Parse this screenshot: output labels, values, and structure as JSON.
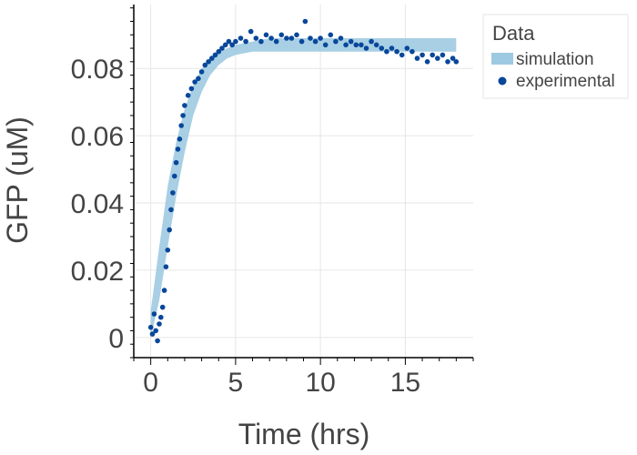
{
  "chart_data": {
    "type": "scatter",
    "xlabel": "Time (hrs)",
    "ylabel": "GFP (uM)",
    "xlim": [
      -1,
      19
    ],
    "ylim": [
      -0.006,
      0.099
    ],
    "x_ticks": [
      0,
      5,
      10,
      15
    ],
    "y_ticks": [
      0,
      0.02,
      0.04,
      0.06,
      0.08
    ],
    "x_tick_labels": [
      "0",
      "5",
      "10",
      "15"
    ],
    "y_tick_labels": [
      "0",
      "0.02",
      "0.04",
      "0.06",
      "0.08"
    ],
    "grid": true,
    "legend": {
      "title": "Data",
      "placement": "right",
      "entries": [
        "simulation",
        "experimental"
      ]
    },
    "colors": {
      "simulation_band": "#9ecae1",
      "experimental_points": "#08479a",
      "grid": "#e6e6e6",
      "axis": "#000000"
    },
    "series": [
      {
        "name": "simulation",
        "kind": "band",
        "x": [
          0,
          0.5,
          1,
          1.5,
          2,
          2.5,
          3,
          3.5,
          4,
          4.5,
          5,
          6,
          7,
          8,
          9,
          10,
          11,
          12,
          13,
          14,
          15,
          16,
          17,
          18
        ],
        "lower": [
          0,
          0.011,
          0.027,
          0.042,
          0.055,
          0.066,
          0.073,
          0.078,
          0.081,
          0.083,
          0.084,
          0.085,
          0.085,
          0.085,
          0.085,
          0.085,
          0.085,
          0.085,
          0.085,
          0.085,
          0.085,
          0.085,
          0.085,
          0.085
        ],
        "upper": [
          0.008,
          0.027,
          0.045,
          0.058,
          0.068,
          0.075,
          0.08,
          0.083,
          0.085,
          0.086,
          0.087,
          0.088,
          0.089,
          0.089,
          0.089,
          0.089,
          0.089,
          0.089,
          0.089,
          0.089,
          0.089,
          0.089,
          0.089,
          0.089
        ]
      },
      {
        "name": "experimental",
        "kind": "points",
        "x": [
          0.0,
          0.1,
          0.2,
          0.3,
          0.4,
          0.5,
          0.6,
          0.7,
          0.8,
          0.9,
          1.0,
          1.1,
          1.2,
          1.3,
          1.4,
          1.5,
          1.6,
          1.7,
          1.8,
          1.9,
          2.0,
          2.2,
          2.4,
          2.6,
          2.8,
          3.0,
          3.2,
          3.4,
          3.6,
          3.8,
          4.0,
          4.2,
          4.4,
          4.6,
          4.8,
          5.0,
          5.3,
          5.6,
          5.9,
          6.2,
          6.5,
          6.8,
          7.1,
          7.4,
          7.7,
          8.0,
          8.3,
          8.6,
          8.9,
          9.1,
          9.4,
          9.7,
          10.0,
          10.3,
          10.6,
          10.9,
          11.2,
          11.5,
          11.8,
          12.1,
          12.4,
          12.7,
          13.0,
          13.3,
          13.6,
          13.9,
          14.2,
          14.5,
          14.8,
          15.1,
          15.4,
          15.7,
          16.0,
          16.3,
          16.6,
          16.9,
          17.2,
          17.5,
          17.8,
          18.0
        ],
        "y": [
          0.003,
          0.001,
          0.007,
          0.002,
          -0.001,
          0.004,
          0.006,
          0.009,
          0.014,
          0.021,
          0.026,
          0.032,
          0.038,
          0.043,
          0.048,
          0.052,
          0.056,
          0.059,
          0.063,
          0.066,
          0.069,
          0.072,
          0.074,
          0.076,
          0.077,
          0.079,
          0.081,
          0.082,
          0.083,
          0.084,
          0.085,
          0.086,
          0.087,
          0.088,
          0.087,
          0.088,
          0.089,
          0.088,
          0.091,
          0.089,
          0.088,
          0.09,
          0.089,
          0.088,
          0.09,
          0.089,
          0.089,
          0.09,
          0.088,
          0.094,
          0.089,
          0.088,
          0.089,
          0.087,
          0.09,
          0.088,
          0.089,
          0.087,
          0.088,
          0.087,
          0.087,
          0.086,
          0.088,
          0.087,
          0.086,
          0.085,
          0.086,
          0.085,
          0.084,
          0.086,
          0.085,
          0.083,
          0.084,
          0.082,
          0.084,
          0.083,
          0.084,
          0.082,
          0.083,
          0.082
        ]
      }
    ]
  }
}
